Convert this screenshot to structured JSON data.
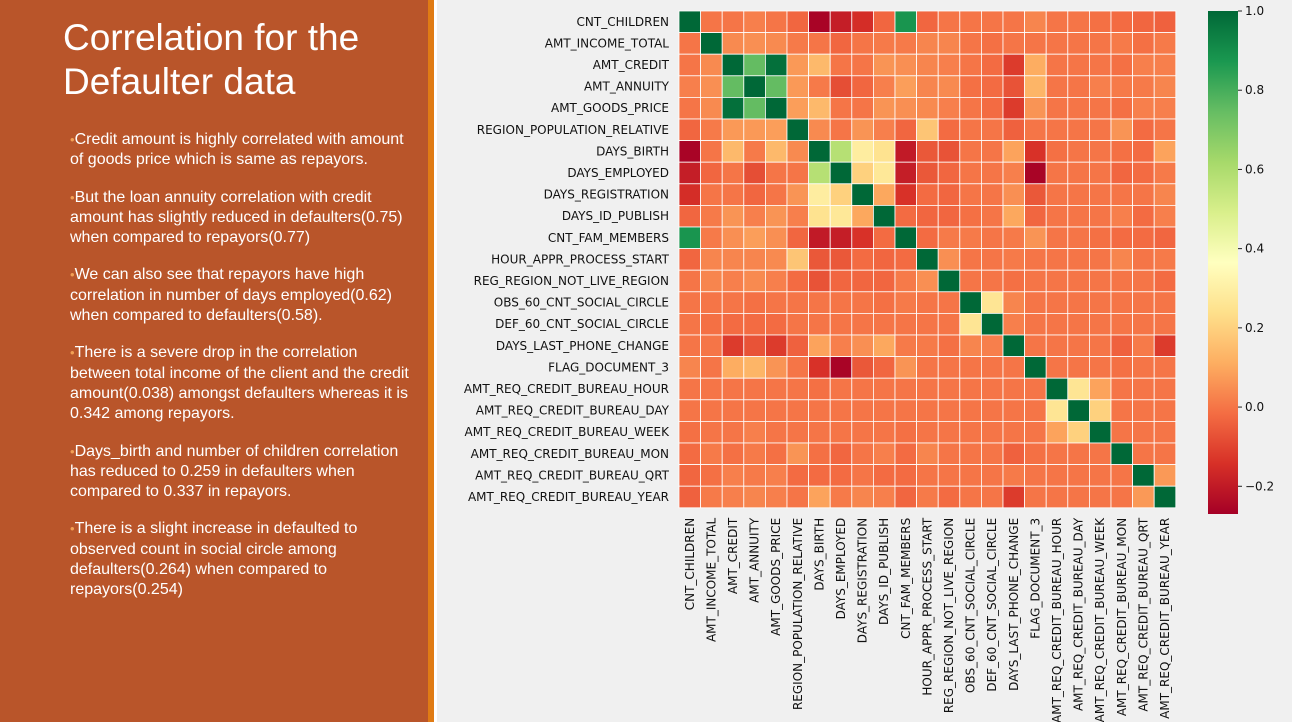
{
  "slide": {
    "title": "Correlation for the Defaulter data",
    "bullets": [
      "Credit amount is highly correlated with amount of goods price which is same as repayors.",
      "But the loan annuity correlation with credit amount has slightly reduced in defaulters(0.75) when compared to repayors(0.77)",
      "We can also see that repayors have high correlation in number of days employed(0.62) when compared to defaulters(0.58).",
      "There is a severe drop in the correlation between total income of the client and the credit amount(0.038) amongst defaulters whereas it is 0.342 among repayors.",
      "Days_birth and number of children correlation has reduced to 0.259 in defaulters when compared to 0.337 in repayors.",
      "There is a slight increase in defaulted to observed count in social circle among defaulters(0.264) when compared to repayors(0.254)"
    ],
    "colors": {
      "panel": "#b9552a",
      "accent": "#e07b14",
      "bullet_marker": "#f2a055"
    }
  },
  "chart_data": {
    "type": "heatmap",
    "title": "",
    "xlabel": "",
    "ylabel": "",
    "colormap": "RdYlGn",
    "value_range": [
      -0.27,
      1.0
    ],
    "colorbar_ticks": [
      "1.0",
      "0.8",
      "0.6",
      "0.4",
      "0.2",
      "0.0",
      "−0.2"
    ],
    "colorbar_tick_values": [
      1.0,
      0.8,
      0.6,
      0.4,
      0.2,
      0.0,
      -0.2
    ],
    "variables": [
      "CNT_CHILDREN",
      "AMT_INCOME_TOTAL",
      "AMT_CREDIT",
      "AMT_ANNUITY",
      "AMT_GOODS_PRICE",
      "REGION_POPULATION_RELATIVE",
      "DAYS_BIRTH",
      "DAYS_EMPLOYED",
      "DAYS_REGISTRATION",
      "DAYS_ID_PUBLISH",
      "CNT_FAM_MEMBERS",
      "HOUR_APPR_PROCESS_START",
      "REG_REGION_NOT_LIVE_REGION",
      "OBS_60_CNT_SOCIAL_CIRCLE",
      "DEF_60_CNT_SOCIAL_CIRCLE",
      "DAYS_LAST_PHONE_CHANGE",
      "FLAG_DOCUMENT_3",
      "AMT_REQ_CREDIT_BUREAU_HOUR",
      "AMT_REQ_CREDIT_BUREAU_DAY",
      "AMT_REQ_CREDIT_BUREAU_WEEK",
      "AMT_REQ_CREDIT_BUREAU_MON",
      "AMT_REQ_CREDIT_BUREAU_QRT",
      "AMT_REQ_CREDIT_BUREAU_YEAR"
    ],
    "matrix": [
      [
        1.0,
        0.0,
        0.0,
        0.02,
        -0.0,
        -0.03,
        -0.26,
        -0.19,
        -0.15,
        -0.03,
        0.88,
        -0.03,
        0.0,
        0.0,
        0.0,
        -0.0,
        0.03,
        0.0,
        0.0,
        -0.01,
        -0.02,
        -0.03,
        -0.04
      ],
      [
        0.0,
        1.0,
        0.04,
        0.05,
        0.04,
        0.01,
        -0.0,
        -0.03,
        -0.0,
        0.01,
        0.01,
        0.03,
        0.03,
        -0.0,
        -0.01,
        -0.0,
        -0.0,
        -0.0,
        0.0,
        -0.0,
        0.01,
        -0.01,
        0.01
      ],
      [
        0.0,
        0.04,
        1.0,
        0.75,
        0.98,
        0.07,
        0.14,
        0.0,
        0.0,
        0.06,
        0.05,
        0.03,
        0.02,
        0.0,
        -0.02,
        -0.12,
        0.11,
        -0.0,
        -0.0,
        0.0,
        -0.01,
        0.02,
        0.02
      ],
      [
        0.02,
        0.05,
        0.75,
        1.0,
        0.75,
        0.07,
        0.01,
        -0.08,
        -0.03,
        0.02,
        0.08,
        0.03,
        0.04,
        -0.01,
        -0.02,
        -0.07,
        0.13,
        0.0,
        0.0,
        0.02,
        0.01,
        0.01,
        0.03
      ],
      [
        -0.0,
        0.04,
        0.98,
        0.75,
        1.0,
        0.08,
        0.14,
        0.0,
        0.0,
        0.06,
        0.05,
        0.04,
        0.02,
        0.0,
        -0.02,
        -0.12,
        0.06,
        -0.0,
        0.0,
        0.0,
        -0.01,
        0.02,
        0.02
      ],
      [
        -0.03,
        0.01,
        0.07,
        0.07,
        0.08,
        1.0,
        0.04,
        -0.0,
        0.06,
        0.02,
        -0.03,
        0.17,
        -0.02,
        0.0,
        0.0,
        -0.04,
        0.0,
        0.0,
        0.0,
        0.0,
        0.06,
        -0.02,
        0.0
      ],
      [
        -0.26,
        -0.0,
        0.14,
        0.01,
        0.14,
        0.04,
        1.0,
        0.58,
        0.29,
        0.25,
        -0.2,
        -0.06,
        -0.07,
        0.0,
        0.0,
        0.09,
        -0.14,
        -0.01,
        0.0,
        -0.0,
        -0.01,
        -0.02,
        0.09
      ],
      [
        -0.19,
        -0.03,
        0.0,
        -0.08,
        0.0,
        -0.0,
        0.58,
        1.0,
        0.2,
        0.27,
        -0.19,
        -0.06,
        -0.03,
        0.0,
        0.0,
        0.02,
        -0.26,
        -0.0,
        0.0,
        -0.0,
        -0.03,
        -0.02,
        0.01
      ],
      [
        -0.15,
        -0.0,
        0.0,
        -0.03,
        0.0,
        0.06,
        0.29,
        0.2,
        1.0,
        0.1,
        -0.14,
        -0.02,
        -0.03,
        -0.0,
        -0.0,
        0.05,
        -0.06,
        -0.0,
        0.0,
        0.0,
        0.0,
        -0.0,
        0.03
      ],
      [
        -0.03,
        0.01,
        0.06,
        0.02,
        0.06,
        0.02,
        0.25,
        0.27,
        0.1,
        1.0,
        -0.02,
        -0.03,
        -0.03,
        -0.01,
        -0.0,
        0.1,
        -0.03,
        -0.0,
        0.0,
        0.0,
        0.02,
        -0.02,
        0.02
      ],
      [
        0.88,
        0.01,
        0.05,
        0.08,
        0.05,
        -0.03,
        -0.2,
        -0.19,
        -0.14,
        -0.02,
        1.0,
        -0.02,
        0.01,
        0.01,
        0.0,
        0.01,
        0.06,
        0.0,
        0.0,
        -0.01,
        -0.02,
        -0.02,
        -0.03
      ],
      [
        -0.03,
        0.03,
        0.03,
        0.03,
        0.04,
        0.17,
        -0.06,
        -0.06,
        -0.02,
        -0.03,
        -0.02,
        1.0,
        0.05,
        -0.0,
        -0.0,
        0.01,
        -0.0,
        0.0,
        0.0,
        0.0,
        0.03,
        -0.0,
        0.01
      ],
      [
        0.0,
        0.03,
        0.02,
        0.04,
        0.02,
        -0.02,
        -0.07,
        -0.03,
        -0.03,
        -0.03,
        0.01,
        0.05,
        1.0,
        0.0,
        0.0,
        -0.01,
        0.0,
        0.0,
        0.0,
        0.0,
        0.0,
        0.0,
        -0.02
      ],
      [
        0.0,
        -0.0,
        0.0,
        -0.01,
        0.0,
        0.0,
        0.0,
        0.0,
        -0.0,
        -0.01,
        0.01,
        -0.0,
        0.0,
        1.0,
        0.26,
        0.03,
        -0.0,
        0.0,
        0.0,
        0.0,
        0.0,
        0.0,
        0.0
      ],
      [
        0.0,
        -0.01,
        -0.02,
        -0.02,
        -0.02,
        0.0,
        0.0,
        0.0,
        -0.0,
        -0.0,
        0.0,
        -0.0,
        0.0,
        0.26,
        1.0,
        0.02,
        0.0,
        0.0,
        0.0,
        0.0,
        0.0,
        0.0,
        0.0
      ],
      [
        -0.0,
        -0.0,
        -0.12,
        -0.07,
        -0.12,
        -0.04,
        0.09,
        0.02,
        0.05,
        0.1,
        0.01,
        0.01,
        -0.01,
        0.03,
        0.02,
        1.0,
        0.0,
        0.0,
        0.0,
        0.0,
        -0.04,
        0.01,
        -0.12
      ],
      [
        0.03,
        -0.0,
        0.11,
        0.13,
        0.06,
        0.0,
        -0.14,
        -0.26,
        -0.06,
        -0.03,
        0.06,
        -0.0,
        0.0,
        -0.0,
        0.0,
        0.0,
        1.0,
        0.0,
        0.0,
        0.0,
        -0.01,
        0.0,
        0.0
      ],
      [
        0.0,
        -0.0,
        -0.0,
        0.0,
        -0.0,
        0.0,
        -0.01,
        -0.0,
        -0.0,
        -0.0,
        0.0,
        0.0,
        0.0,
        0.0,
        0.0,
        0.0,
        0.0,
        1.0,
        0.26,
        0.09,
        0.0,
        0.0,
        0.0
      ],
      [
        0.0,
        0.0,
        -0.0,
        0.0,
        0.0,
        0.0,
        0.0,
        0.0,
        0.0,
        0.0,
        0.0,
        0.0,
        0.0,
        0.0,
        0.0,
        0.0,
        0.0,
        0.26,
        1.0,
        0.2,
        0.0,
        0.0,
        0.0
      ],
      [
        -0.01,
        -0.0,
        0.0,
        0.02,
        0.0,
        0.0,
        -0.0,
        -0.0,
        0.0,
        0.0,
        -0.01,
        0.0,
        0.0,
        0.0,
        0.0,
        0.0,
        0.0,
        0.09,
        0.2,
        1.0,
        0.0,
        0.0,
        0.0
      ],
      [
        -0.02,
        0.01,
        -0.01,
        0.01,
        -0.01,
        0.06,
        -0.01,
        -0.03,
        0.0,
        0.02,
        -0.02,
        0.03,
        0.0,
        0.0,
        0.0,
        -0.04,
        -0.01,
        0.0,
        0.0,
        0.0,
        1.0,
        0.0,
        0.0
      ],
      [
        -0.03,
        -0.01,
        0.02,
        0.01,
        0.02,
        -0.02,
        -0.02,
        -0.02,
        -0.0,
        -0.02,
        -0.02,
        -0.0,
        0.0,
        0.0,
        0.0,
        0.01,
        0.0,
        0.0,
        0.0,
        0.0,
        0.0,
        1.0,
        0.07
      ],
      [
        -0.04,
        0.01,
        0.02,
        0.03,
        0.02,
        0.0,
        0.09,
        0.01,
        0.03,
        0.02,
        -0.03,
        0.01,
        -0.02,
        0.0,
        0.0,
        -0.12,
        0.0,
        0.0,
        0.0,
        0.0,
        0.0,
        0.07,
        1.0
      ]
    ]
  }
}
